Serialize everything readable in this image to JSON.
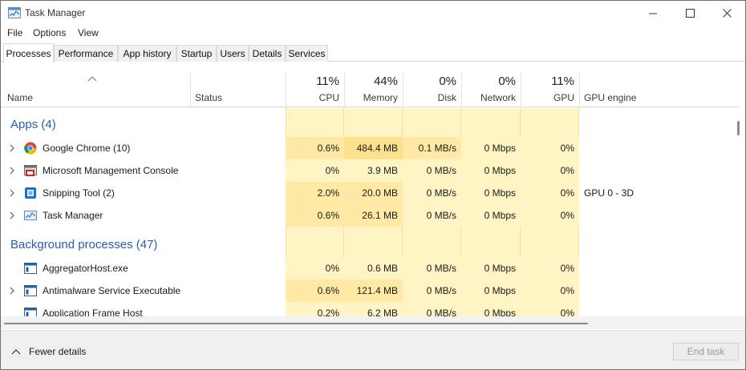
{
  "window": {
    "title": "Task Manager"
  },
  "menu": [
    "File",
    "Options",
    "View"
  ],
  "tabs": [
    "Processes",
    "Performance",
    "App history",
    "Startup",
    "Users",
    "Details",
    "Services"
  ],
  "active_tab": "Processes",
  "columns": {
    "name": "Name",
    "status": "Status",
    "cpu": {
      "pct": "11%",
      "label": "CPU"
    },
    "memory": {
      "pct": "44%",
      "label": "Memory"
    },
    "disk": {
      "pct": "0%",
      "label": "Disk"
    },
    "network": {
      "pct": "0%",
      "label": "Network"
    },
    "gpu": {
      "pct": "11%",
      "label": "GPU"
    },
    "gpu_engine": "GPU engine"
  },
  "groups": {
    "apps": "Apps (4)",
    "background": "Background processes (47)"
  },
  "apps": [
    {
      "name": "Google Chrome (10)",
      "icon": "chrome-icon",
      "cpu": "0.6%",
      "memory": "484.4 MB",
      "disk": "0.1 MB/s",
      "network": "0 Mbps",
      "gpu": "0%",
      "gpu_engine": ""
    },
    {
      "name": "Microsoft Management Console",
      "icon": "mmc-icon",
      "cpu": "0%",
      "memory": "3.9 MB",
      "disk": "0 MB/s",
      "network": "0 Mbps",
      "gpu": "0%",
      "gpu_engine": ""
    },
    {
      "name": "Snipping Tool (2)",
      "icon": "snipping-tool-icon",
      "cpu": "2.0%",
      "memory": "20.0 MB",
      "disk": "0 MB/s",
      "network": "0 Mbps",
      "gpu": "0%",
      "gpu_engine": "GPU 0 - 3D"
    },
    {
      "name": "Task Manager",
      "icon": "task-manager-icon",
      "cpu": "0.6%",
      "memory": "26.1 MB",
      "disk": "0 MB/s",
      "network": "0 Mbps",
      "gpu": "0%",
      "gpu_engine": ""
    }
  ],
  "background": [
    {
      "name": "AggregatorHost.exe",
      "icon": "app-window-icon",
      "expandable": false,
      "cpu": "0%",
      "memory": "0.6 MB",
      "disk": "0 MB/s",
      "network": "0 Mbps",
      "gpu": "0%"
    },
    {
      "name": "Antimalware Service Executable",
      "icon": "app-window-icon",
      "expandable": true,
      "cpu": "0.6%",
      "memory": "121.4 MB",
      "disk": "0 MB/s",
      "network": "0 Mbps",
      "gpu": "0%"
    },
    {
      "name": "Application Frame Host",
      "icon": "app-window-icon",
      "expandable": false,
      "cpu": "0.2%",
      "memory": "6.2 MB",
      "disk": "0 MB/s",
      "network": "0 Mbps",
      "gpu": "0%"
    }
  ],
  "footer": {
    "fewer_details": "Fewer details",
    "end_task": "End task"
  },
  "colors": {
    "group_title": "#2a5db0",
    "heat_light": "#fff4c4",
    "heat_mid": "#ffe9a4",
    "heat_strong": "#fce08e",
    "column_separator": "#f2dfa6"
  }
}
